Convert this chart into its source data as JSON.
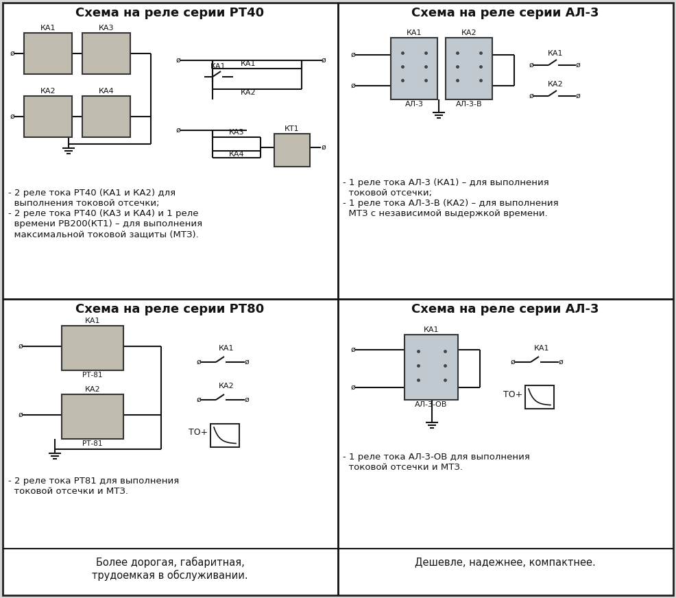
{
  "bg_color": "#d8d8d8",
  "cell_bg": "#ffffff",
  "border_color": "#222222",
  "title_color": "#111111",
  "text_color": "#111111",
  "titles": [
    "Схема на реле серии РТ40",
    "Схема на реле серии АЛ-3",
    "Схема на реле серии РТ80",
    "Схема на реле серии АЛ-3"
  ],
  "desc_tl": "- 2 реле тока РТ40 (КА1 и КА2) для\n  выполнения токовой отсечки;\n- 2 реле тока РТ40 (КА3 и КА4) и 1 реле\n  времени РВ200(КТ1) – для выполнения\n  максимальной токовой защиты (МТЗ).",
  "desc_tr": "- 1 реле тока АЛ-3 (КА1) – для выполнения\n  токовой отсечки;\n- 1 реле тока АЛ-3-В (КА2) – для выполнения\n  МТЗ с независимой выдержкой времени.",
  "desc_bl": "- 2 реле тока РТ81 для выполнения\n  токовой отсечки и МТЗ.",
  "desc_br": "- 1 реле тока АЛ-3-ОВ для выполнения\n  токовой отсечки и МТЗ.",
  "footer_left": "Более дорогая, габаритная,\nтрудоемкая в обслуживании.",
  "footer_right": "Дешевле, надежнее, компактнее."
}
